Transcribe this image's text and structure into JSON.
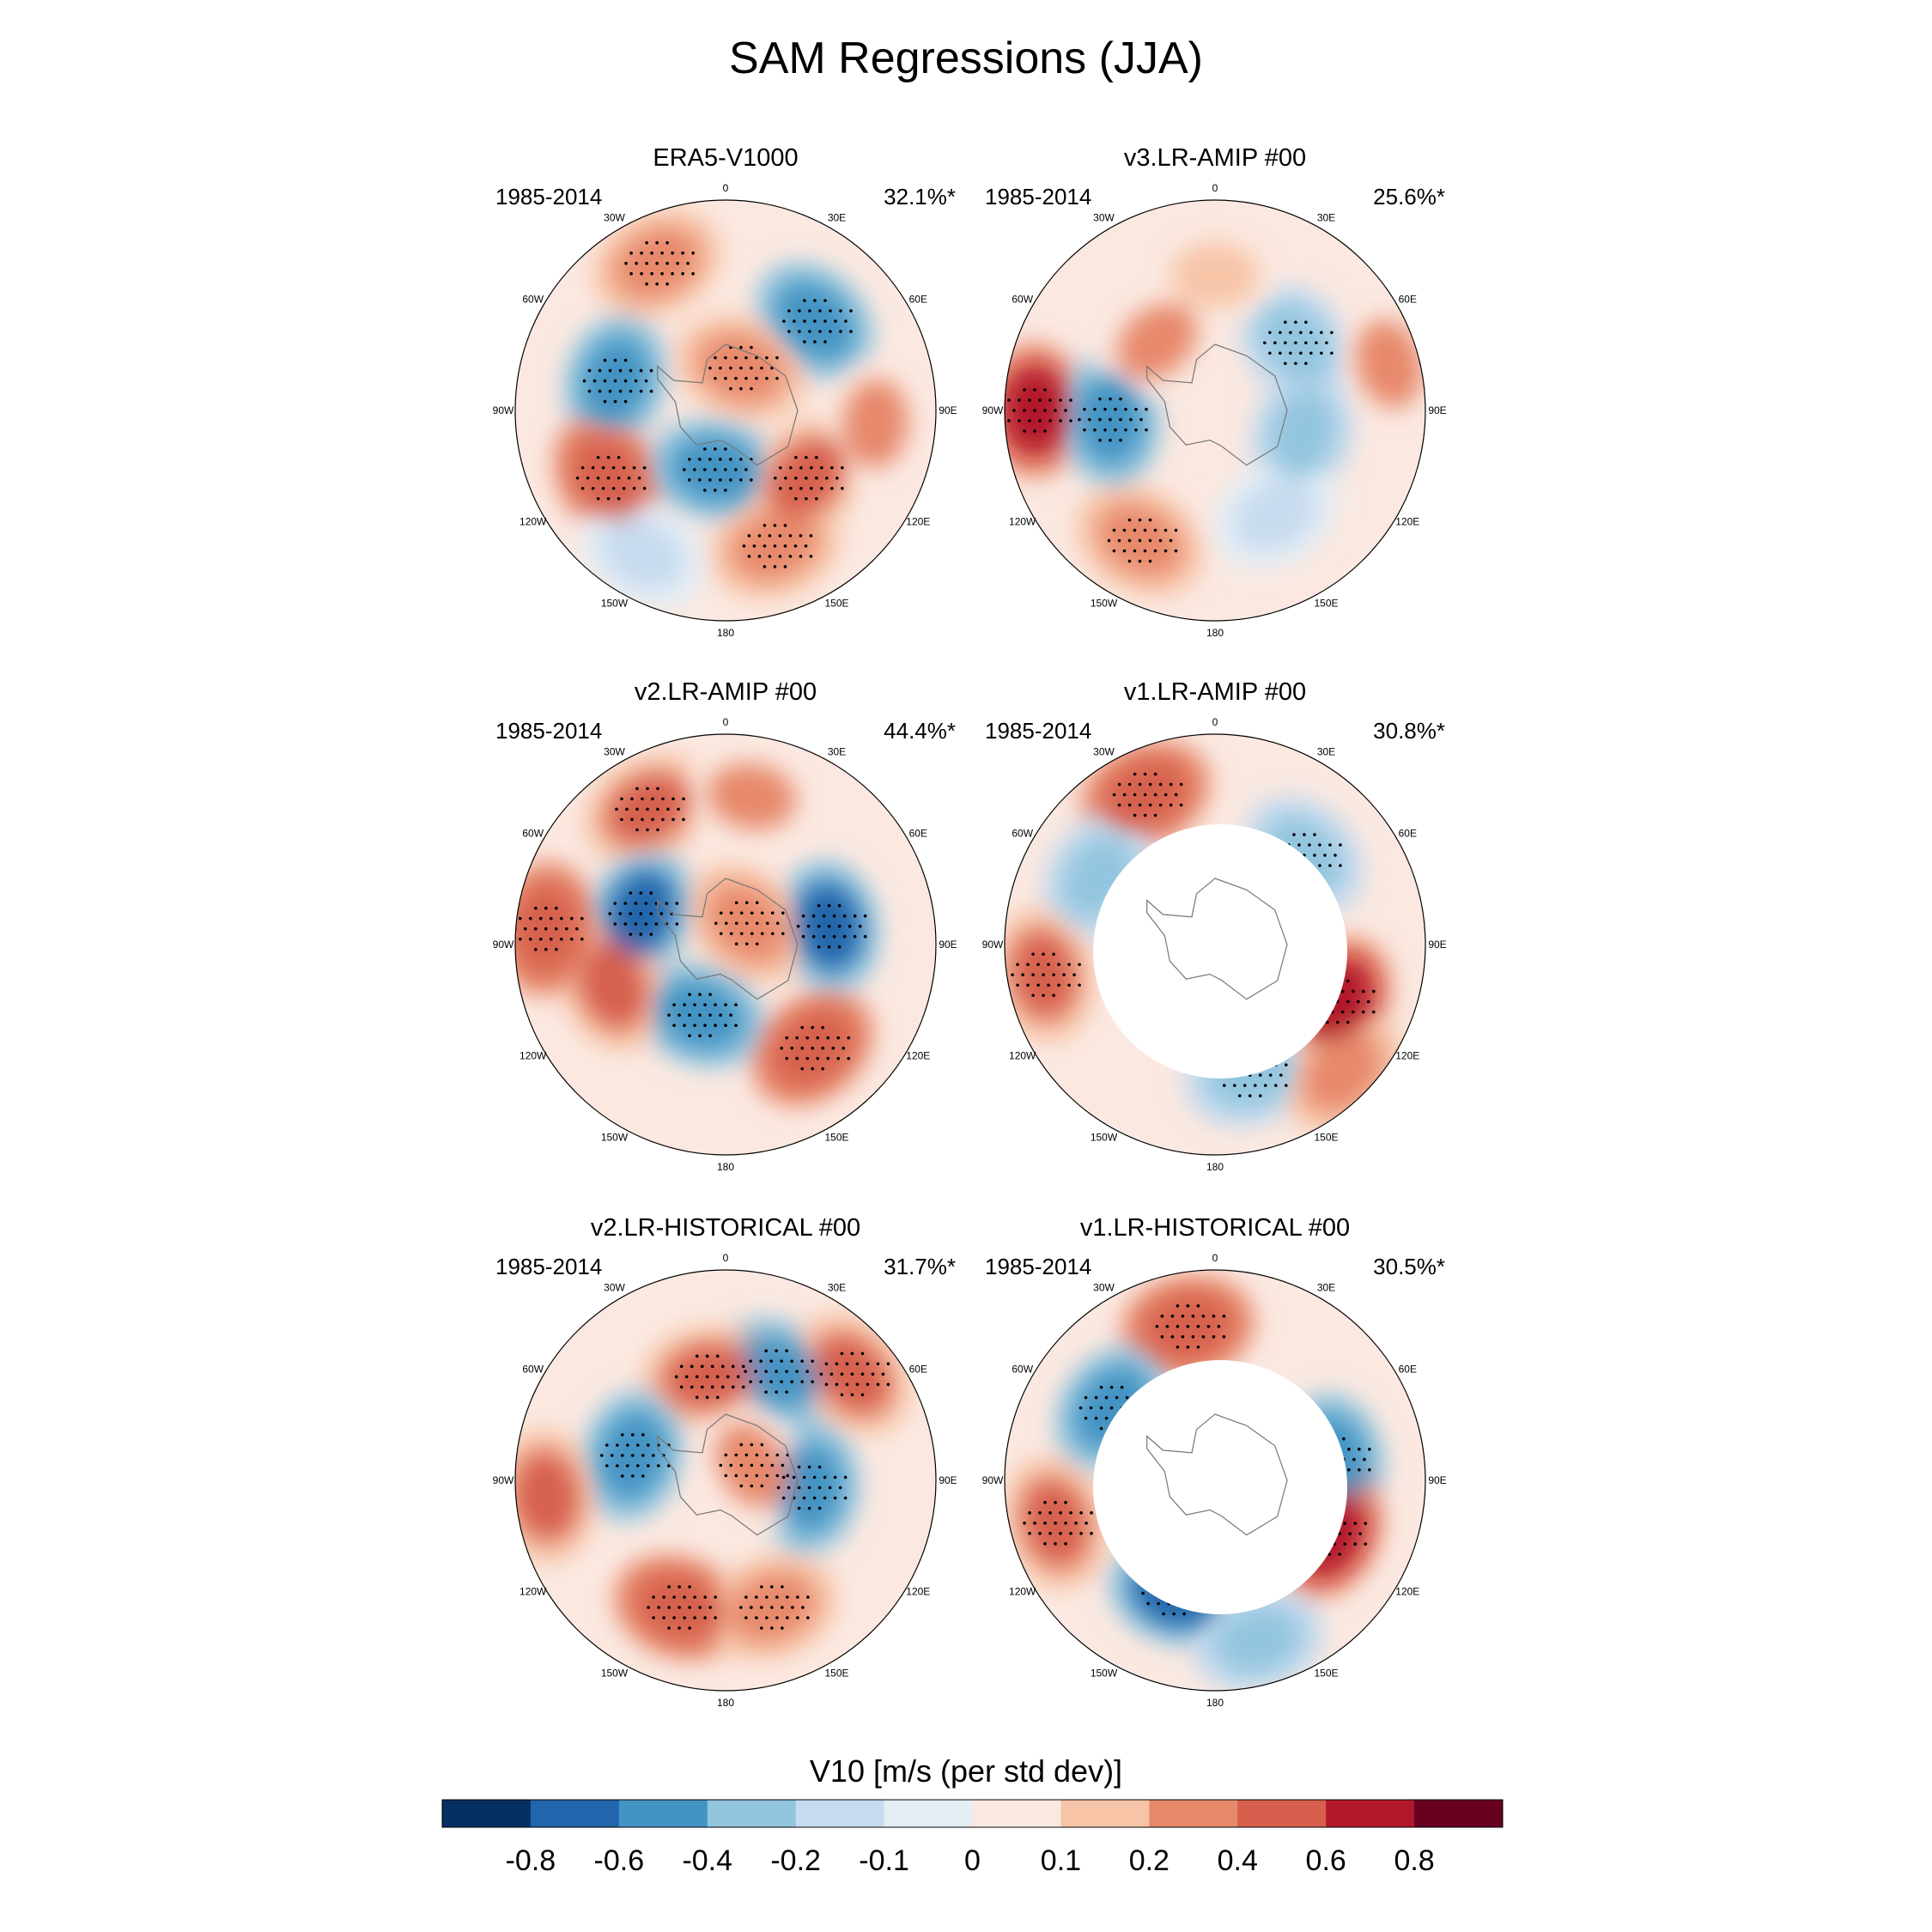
{
  "title": "SAM Regressions (JJA)",
  "period": "1985-2014",
  "lon_labels": [
    "0",
    "30E",
    "60E",
    "90E",
    "120E",
    "150E",
    "180",
    "150W",
    "120W",
    "90W",
    "60W",
    "30W"
  ],
  "panels": [
    {
      "title": "ERA5-V1000",
      "pct": "32.1%*",
      "masked_pole": false,
      "anomalies": [
        {
          "lon": -25,
          "lat": -36,
          "value": 0.3,
          "stipple": true
        },
        {
          "lon": -75,
          "lat": -52,
          "value": -0.5,
          "stipple": true
        },
        {
          "lon": 45,
          "lat": -48,
          "value": -0.5,
          "stipple": true
        },
        {
          "lon": 20,
          "lat": -75,
          "value": 0.3,
          "stipple": true
        },
        {
          "lon": -120,
          "lat": -45,
          "value": 0.5,
          "stipple": true
        },
        {
          "lon": -170,
          "lat": -70,
          "value": -0.5,
          "stipple": true
        },
        {
          "lon": 130,
          "lat": -55,
          "value": 0.4,
          "stipple": true
        },
        {
          "lon": 160,
          "lat": -42,
          "value": 0.3,
          "stipple": true
        },
        {
          "lon": -150,
          "lat": -35,
          "value": -0.2,
          "stipple": false
        },
        {
          "lon": 95,
          "lat": -40,
          "value": 0.2,
          "stipple": false
        }
      ]
    },
    {
      "title": "v3.LR-AMIP  #00",
      "pct": "25.6%*",
      "masked_pole": false,
      "anomalies": [
        {
          "lon": -90,
          "lat": -30,
          "value": 0.6,
          "stipple": true
        },
        {
          "lon": -95,
          "lat": -55,
          "value": -0.6,
          "stipple": true
        },
        {
          "lon": 50,
          "lat": -55,
          "value": -0.4,
          "stipple": true
        },
        {
          "lon": 105,
          "lat": -60,
          "value": -0.3,
          "stipple": false
        },
        {
          "lon": -150,
          "lat": -40,
          "value": 0.3,
          "stipple": true
        },
        {
          "lon": 75,
          "lat": -30,
          "value": 0.2,
          "stipple": false
        },
        {
          "lon": 0,
          "lat": -45,
          "value": 0.15,
          "stipple": false
        },
        {
          "lon": 150,
          "lat": -50,
          "value": -0.15,
          "stipple": false
        },
        {
          "lon": -40,
          "lat": -60,
          "value": 0.2,
          "stipple": false
        }
      ]
    },
    {
      "title": "v2.LR-AMIP  #00",
      "pct": "44.4%*",
      "masked_pole": false,
      "anomalies": [
        {
          "lon": -30,
          "lat": -38,
          "value": 0.4,
          "stipple": true
        },
        {
          "lon": -70,
          "lat": -60,
          "value": -0.8,
          "stipple": true
        },
        {
          "lon": 80,
          "lat": -55,
          "value": -0.8,
          "stipple": true
        },
        {
          "lon": 45,
          "lat": -80,
          "value": 0.3,
          "stipple": true
        },
        {
          "lon": -160,
          "lat": -65,
          "value": -0.6,
          "stipple": true
        },
        {
          "lon": 140,
          "lat": -45,
          "value": 0.5,
          "stipple": true
        },
        {
          "lon": -110,
          "lat": -50,
          "value": 0.4,
          "stipple": false
        },
        {
          "lon": -85,
          "lat": -30,
          "value": 0.5,
          "stipple": true
        },
        {
          "lon": 10,
          "lat": -40,
          "value": 0.2,
          "stipple": false
        }
      ]
    },
    {
      "title": "v1.LR-AMIP  #00",
      "pct": "30.8%*",
      "masked_pole": true,
      "anomalies": [
        {
          "lon": -25,
          "lat": -35,
          "value": 0.5,
          "stipple": true
        },
        {
          "lon": -60,
          "lat": -45,
          "value": -0.3,
          "stipple": false
        },
        {
          "lon": 45,
          "lat": -48,
          "value": -0.4,
          "stipple": true
        },
        {
          "lon": 115,
          "lat": -45,
          "value": 0.6,
          "stipple": true
        },
        {
          "lon": -100,
          "lat": -32,
          "value": 0.4,
          "stipple": true
        },
        {
          "lon": 165,
          "lat": -45,
          "value": -0.4,
          "stipple": true
        },
        {
          "lon": 135,
          "lat": -30,
          "value": 0.3,
          "stipple": false
        }
      ]
    },
    {
      "title": "v2.LR-HISTORICAL  #00",
      "pct": "31.7%*",
      "masked_pole": false,
      "anomalies": [
        {
          "lon": 25,
          "lat": -50,
          "value": -0.6,
          "stipple": true
        },
        {
          "lon": -10,
          "lat": -55,
          "value": 0.4,
          "stipple": true
        },
        {
          "lon": 50,
          "lat": -35,
          "value": 0.4,
          "stipple": true
        },
        {
          "lon": -75,
          "lat": -58,
          "value": -0.6,
          "stipple": true
        },
        {
          "lon": 95,
          "lat": -62,
          "value": -0.6,
          "stipple": true
        },
        {
          "lon": -160,
          "lat": -45,
          "value": 0.5,
          "stipple": true
        },
        {
          "lon": 160,
          "lat": -45,
          "value": 0.3,
          "stipple": true
        },
        {
          "lon": -95,
          "lat": -30,
          "value": 0.4,
          "stipple": false
        },
        {
          "lon": 60,
          "lat": -80,
          "value": 0.2,
          "stipple": true
        }
      ]
    },
    {
      "title": "v1.LR-HISTORICAL  #00",
      "pct": "30.5%*",
      "masked_pole": true,
      "anomalies": [
        {
          "lon": -10,
          "lat": -38,
          "value": 0.5,
          "stipple": true
        },
        {
          "lon": -55,
          "lat": -48,
          "value": -0.6,
          "stipple": true
        },
        {
          "lon": 80,
          "lat": -50,
          "value": -0.6,
          "stipple": true
        },
        {
          "lon": 115,
          "lat": -48,
          "value": 0.7,
          "stipple": true
        },
        {
          "lon": -160,
          "lat": -50,
          "value": -0.8,
          "stipple": true
        },
        {
          "lon": -105,
          "lat": -35,
          "value": 0.4,
          "stipple": true
        },
        {
          "lon": 165,
          "lat": -35,
          "value": -0.3,
          "stipple": false
        }
      ]
    }
  ],
  "colorbar": {
    "title": "V10 [m/s (per std dev)]",
    "colors": [
      "#053061",
      "#2166ac",
      "#4393c3",
      "#92c5de",
      "#c6dbef",
      "#e6eef5",
      "#fbe9e1",
      "#f7c4a7",
      "#e7886a",
      "#d6604d",
      "#b2182b",
      "#67001f"
    ],
    "tick_labels": [
      "-0.8",
      "-0.6",
      "-0.4",
      "-0.2",
      "-0.1",
      "0",
      "0.1",
      "0.2",
      "0.4",
      "0.6",
      "0.8"
    ],
    "bounds": [
      -0.8,
      -0.6,
      -0.4,
      -0.2,
      -0.1,
      0,
      0.1,
      0.2,
      0.4,
      0.6,
      0.8
    ]
  }
}
